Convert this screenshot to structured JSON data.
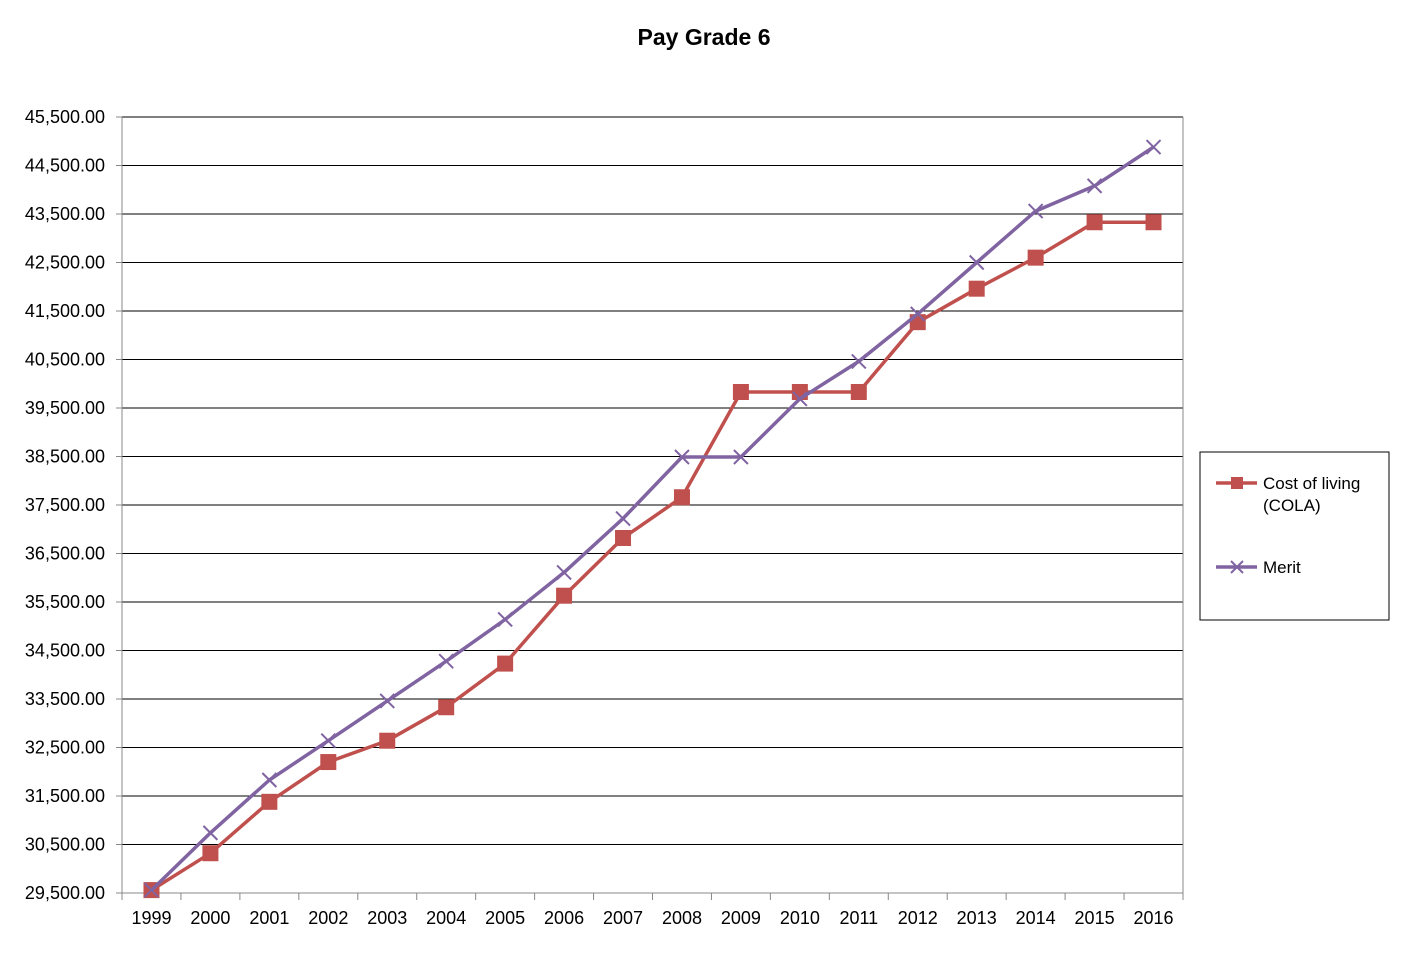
{
  "chart_data": {
    "type": "line",
    "title": "Pay Grade 6",
    "xlabel": "",
    "ylabel": "",
    "categories": [
      "1999",
      "2000",
      "2001",
      "2002",
      "2003",
      "2004",
      "2005",
      "2006",
      "2007",
      "2008",
      "2009",
      "2010",
      "2011",
      "2012",
      "2013",
      "2014",
      "2015",
      "2016"
    ],
    "ylim": [
      29500,
      45500
    ],
    "yticks": [
      29500,
      30500,
      31500,
      32500,
      33500,
      34500,
      35500,
      36500,
      37500,
      38500,
      39500,
      40500,
      41500,
      42500,
      43500,
      44500,
      45500
    ],
    "ytick_labels": [
      "29,500.00",
      "30,500.00",
      "31,500.00",
      "32,500.00",
      "33,500.00",
      "34,500.00",
      "35,500.00",
      "36,500.00",
      "37,500.00",
      "38,500.00",
      "39,500.00",
      "40,500.00",
      "41,500.00",
      "42,500.00",
      "43,500.00",
      "44,500.00",
      "45,500.00"
    ],
    "grid": true,
    "legend_position": "right",
    "series": [
      {
        "name": "Cost of living (COLA)",
        "legend_lines": [
          "Cost of living",
          "(COLA)"
        ],
        "color": "#C0504D",
        "marker": "square",
        "values": [
          29560,
          30320,
          31380,
          32200,
          32640,
          33330,
          34230,
          35630,
          36820,
          37660,
          39830,
          39830,
          39830,
          41270,
          41960,
          42600,
          43330,
          43330
        ]
      },
      {
        "name": "Merit",
        "legend_lines": [
          "Merit"
        ],
        "color": "#8064A2",
        "marker": "x",
        "values": [
          29560,
          30740,
          31830,
          32640,
          33460,
          34280,
          35140,
          36110,
          37220,
          38490,
          38490,
          39690,
          40460,
          41440,
          42500,
          43560,
          44080,
          44880
        ]
      }
    ]
  }
}
